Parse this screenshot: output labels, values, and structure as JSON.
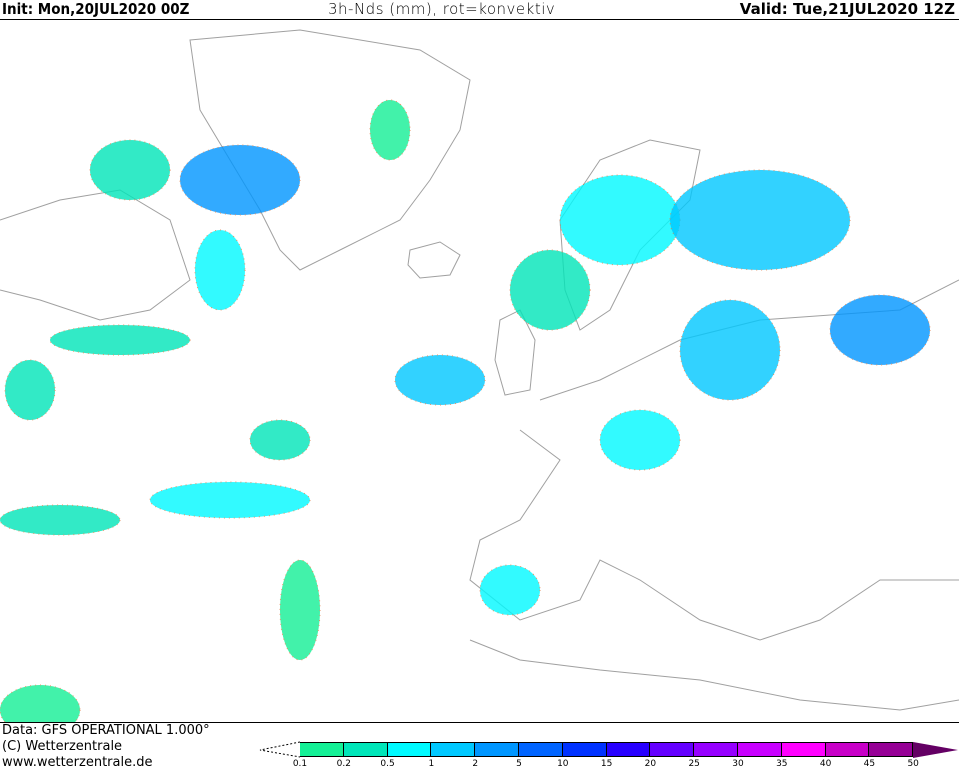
{
  "header": {
    "init": "Init: Mon,20JUL2020 00Z",
    "title": "3h-Nds (mm), rot=konvektiv",
    "valid": "Valid: Tue,21JUL2020 12Z"
  },
  "footer": {
    "data_line": "Data: GFS OPERATIONAL 1.000°",
    "copyright": "(C) Wetterzentrale",
    "website": "www.wetterzentrale.de"
  },
  "legend": {
    "labels": [
      "0.1",
      "0.2",
      "0.5",
      "1",
      "2",
      "5",
      "10",
      "15",
      "20",
      "25",
      "30",
      "35",
      "40",
      "45",
      "50"
    ],
    "colors": [
      "#14f096",
      "#00e6b9",
      "#00faff",
      "#00c8ff",
      "#0096ff",
      "#0064ff",
      "#0032ff",
      "#2800ff",
      "#6400ff",
      "#9600ff",
      "#c800ff",
      "#ff00ff",
      "#c800c8",
      "#960096",
      "#640064"
    ]
  },
  "map": {
    "coastline_color": "#a0a0a0",
    "convective_color": "#e07840"
  }
}
